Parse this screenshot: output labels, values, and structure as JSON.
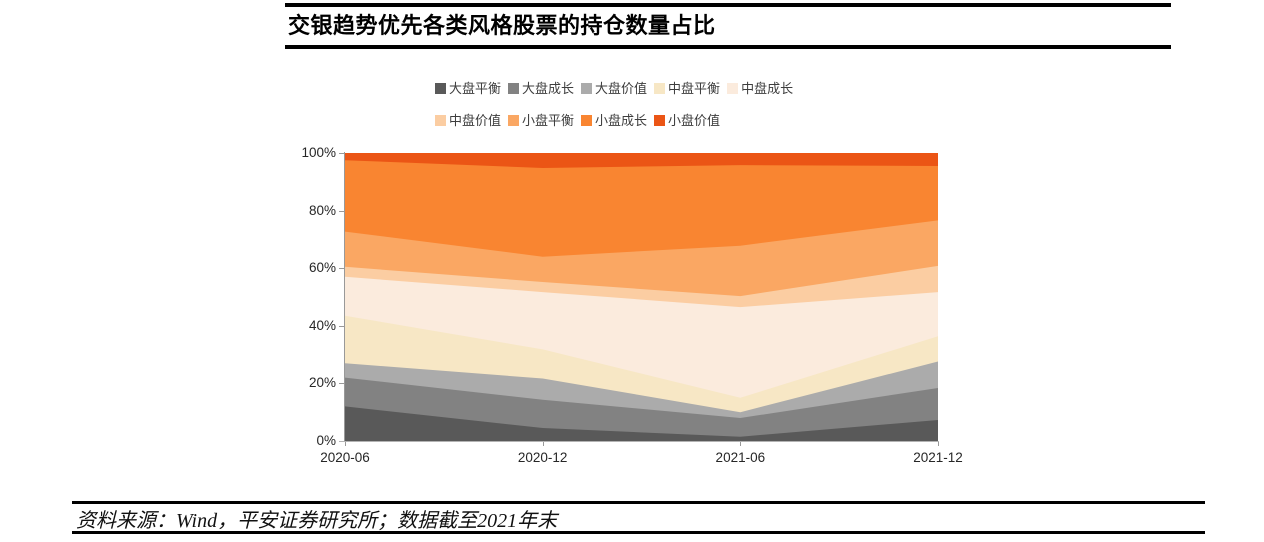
{
  "header": {
    "title": "交银趋势优先各类风格股票的持仓数量占比"
  },
  "footer": {
    "source_note": "资料来源：Wind，平安证券研究所；数据截至2021年末"
  },
  "chart_data": {
    "type": "area",
    "stacked": true,
    "unit": "%",
    "title": "交银趋势优先各类风格股票的持仓数量占比",
    "categories": [
      "2020-06",
      "2020-12",
      "2021-06",
      "2021-12"
    ],
    "series": [
      {
        "name": "大盘平衡",
        "color": "#595959",
        "values": [
          12.0,
          4.5,
          1.5,
          7.3
        ]
      },
      {
        "name": "大盘成长",
        "color": "#828282",
        "values": [
          10.0,
          9.8,
          6.5,
          11.1
        ]
      },
      {
        "name": "大盘价值",
        "color": "#ABABAB",
        "values": [
          5.0,
          7.4,
          2.0,
          9.2
        ]
      },
      {
        "name": "中盘平衡",
        "color": "#F7E7C5",
        "values": [
          16.5,
          10.1,
          5.0,
          8.8
        ]
      },
      {
        "name": "中盘成长",
        "color": "#FBEBDD",
        "values": [
          13.5,
          19.9,
          31.5,
          15.3
        ]
      },
      {
        "name": "中盘价值",
        "color": "#FBCDA2",
        "values": [
          3.5,
          3.5,
          3.8,
          9.1
        ]
      },
      {
        "name": "小盘平衡",
        "color": "#FAA763",
        "values": [
          12.2,
          8.8,
          17.5,
          15.8
        ]
      },
      {
        "name": "小盘成长",
        "color": "#F98531",
        "values": [
          24.8,
          30.8,
          28.0,
          18.9
        ]
      },
      {
        "name": "小盘价值",
        "color": "#EB5515",
        "values": [
          2.5,
          5.2,
          4.2,
          4.5
        ]
      }
    ],
    "ylim": [
      0,
      100
    ],
    "y_ticks": [
      "0%",
      "20%",
      "40%",
      "60%",
      "80%",
      "100%"
    ],
    "legend_position": "top",
    "legend_row_split": 5,
    "grid": false,
    "axis_color": "#999999"
  }
}
